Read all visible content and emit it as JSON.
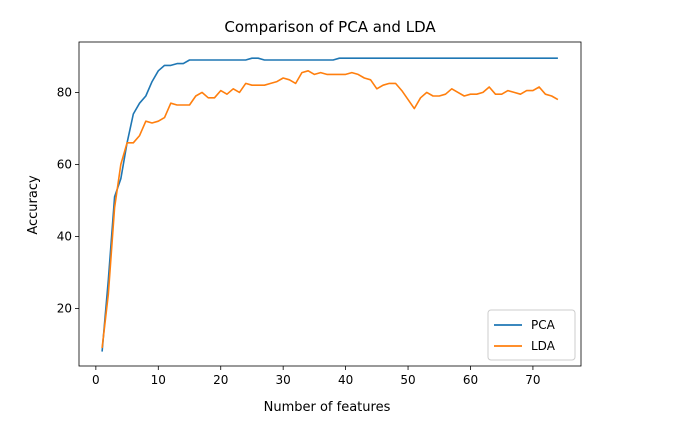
{
  "chart_data": {
    "type": "line",
    "title": "Comparison of PCA and LDA",
    "xlabel": "Number of features",
    "ylabel": "Accuracy",
    "xlim": [
      -2.7,
      77.7
    ],
    "ylim": [
      4,
      94
    ],
    "xticks": [
      0,
      10,
      20,
      30,
      40,
      50,
      60,
      70
    ],
    "yticks": [
      20,
      40,
      60,
      80
    ],
    "grid": false,
    "legend_position": "lower-right",
    "series": [
      {
        "name": "PCA",
        "color": "#1f77b4",
        "x": [
          1,
          2,
          3,
          4,
          5,
          6,
          7,
          8,
          9,
          10,
          11,
          12,
          13,
          14,
          15,
          16,
          17,
          18,
          19,
          20,
          21,
          22,
          23,
          24,
          25,
          26,
          27,
          28,
          29,
          30,
          31,
          32,
          33,
          34,
          35,
          36,
          37,
          38,
          39,
          40,
          41,
          42,
          43,
          44,
          45,
          46,
          47,
          48,
          49,
          50,
          51,
          52,
          53,
          54,
          55,
          56,
          57,
          58,
          59,
          60,
          61,
          62,
          63,
          64,
          65,
          66,
          67,
          68,
          69,
          70,
          71,
          72,
          73,
          74
        ],
        "values": [
          8,
          28,
          51,
          56,
          66,
          74,
          77,
          79,
          83,
          86,
          87.5,
          87.5,
          88,
          88,
          89,
          89,
          89,
          89,
          89,
          89,
          89,
          89,
          89,
          89,
          89.5,
          89.5,
          89,
          89,
          89,
          89,
          89,
          89,
          89,
          89,
          89,
          89,
          89,
          89,
          89.5,
          89.5,
          89.5,
          89.5,
          89.5,
          89.5,
          89.5,
          89.5,
          89.5,
          89.5,
          89.5,
          89.5,
          89.5,
          89.5,
          89.5,
          89.5,
          89.5,
          89.5,
          89.5,
          89.5,
          89.5,
          89.5,
          89.5,
          89.5,
          89.5,
          89.5,
          89.5,
          89.5,
          89.5,
          89.5,
          89.5,
          89.5,
          89.5,
          89.5,
          89.5,
          89.5
        ]
      },
      {
        "name": "LDA",
        "color": "#ff7f0e",
        "x": [
          1,
          2,
          3,
          4,
          5,
          6,
          7,
          8,
          9,
          10,
          11,
          12,
          13,
          14,
          15,
          16,
          17,
          18,
          19,
          20,
          21,
          22,
          23,
          24,
          25,
          26,
          27,
          28,
          29,
          30,
          31,
          32,
          33,
          34,
          35,
          36,
          37,
          38,
          39,
          40,
          41,
          42,
          43,
          44,
          45,
          46,
          47,
          48,
          49,
          50,
          51,
          52,
          53,
          54,
          55,
          56,
          57,
          58,
          59,
          60,
          61,
          62,
          63,
          64,
          65,
          66,
          67,
          68,
          69,
          70,
          71,
          72,
          73,
          74
        ],
        "values": [
          9,
          24,
          48,
          60,
          66,
          66,
          68,
          72,
          71.5,
          72,
          73,
          77,
          76.5,
          76.5,
          76.5,
          79,
          80,
          78.5,
          78.5,
          80.5,
          79.5,
          81,
          80,
          82.5,
          82,
          82,
          82,
          82.5,
          83,
          84,
          83.5,
          82.5,
          85.5,
          86,
          85,
          85.5,
          85,
          85,
          85,
          85,
          85.5,
          85,
          84,
          83.5,
          81,
          82,
          82.5,
          82.5,
          80.5,
          78,
          75.5,
          78.5,
          80,
          79,
          79,
          79.5,
          81,
          80,
          79,
          79.5,
          79.5,
          80,
          81.5,
          79.5,
          79.5,
          80.5,
          80,
          79.5,
          80.5,
          80.5,
          81.5,
          79.5,
          79,
          78
        ]
      }
    ]
  }
}
